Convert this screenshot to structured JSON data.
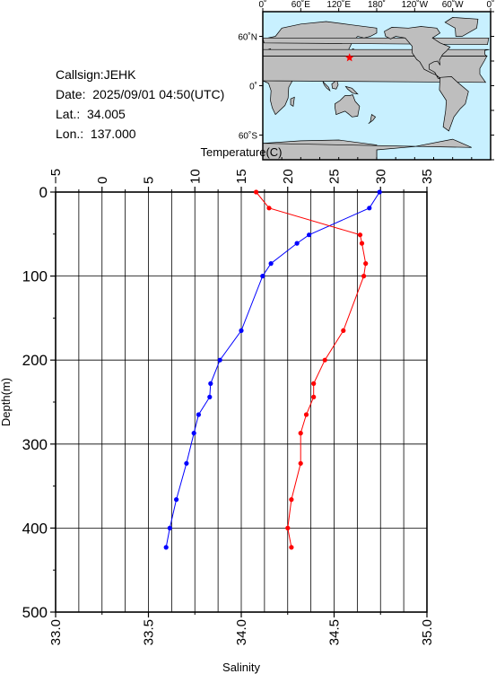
{
  "station": {
    "callsign": "Callsign:JEHK",
    "date": "Date:  2025/09/01 04:50(UTC)",
    "lat": "Lat.:  34.005",
    "lon": "Lon.:  137.000"
  },
  "map": {
    "top_ticks": [
      "0˚",
      "60˚E",
      "120˚E",
      "180˚",
      "120˚W",
      "60˚W",
      "0˚"
    ],
    "left_ticks": [
      "60˚N",
      "0˚",
      "60˚S"
    ],
    "colors": {
      "ocean": "#c8f0ff",
      "land": "#bebebe",
      "marker": "#ff0000"
    },
    "marker_lon": 137.0,
    "marker_lat": 34.005
  },
  "chart_data": {
    "type": "line",
    "title": "",
    "ylabel": "Depth(m)",
    "ylim": [
      0,
      500
    ],
    "y_ticks": [
      0,
      100,
      200,
      300,
      400,
      500
    ],
    "y_tick_labels": [
      "0",
      "100",
      "200",
      "300",
      "400",
      "500"
    ],
    "grid": true,
    "top_axis": {
      "label": "Temperature(C)",
      "range": [
        -5,
        35
      ],
      "ticks": [
        -5,
        0,
        5,
        10,
        15,
        20,
        25,
        30,
        35
      ],
      "tick_labels": [
        "−5",
        "0",
        "5",
        "10",
        "15",
        "20",
        "25",
        "30",
        "35"
      ]
    },
    "bottom_axis": {
      "label": "Salinity",
      "range": [
        33.0,
        35.0
      ],
      "ticks": [
        33.0,
        33.5,
        34.0,
        34.5,
        35.0
      ],
      "tick_labels": [
        "33.0",
        "33.5",
        "34.0",
        "34.5",
        "35.0"
      ]
    },
    "series": [
      {
        "axis": "top",
        "color": "#0000ff",
        "points": [
          [
            29.9,
            0
          ],
          [
            28.8,
            19
          ],
          [
            22.3,
            51
          ],
          [
            21.0,
            61
          ],
          [
            18.2,
            85
          ],
          [
            17.3,
            100
          ],
          [
            15.0,
            165
          ],
          [
            12.7,
            200
          ],
          [
            11.7,
            228
          ],
          [
            11.6,
            244
          ],
          [
            10.4,
            265
          ],
          [
            9.9,
            287
          ],
          [
            9.1,
            323
          ],
          [
            8.0,
            366
          ],
          [
            7.3,
            400
          ],
          [
            6.9,
            423
          ]
        ]
      },
      {
        "axis": "bottom",
        "color": "#ff0000",
        "points": [
          [
            34.08,
            0
          ],
          [
            34.15,
            19
          ],
          [
            34.64,
            51
          ],
          [
            34.65,
            61
          ],
          [
            34.67,
            85
          ],
          [
            34.66,
            100
          ],
          [
            34.55,
            165
          ],
          [
            34.45,
            200
          ],
          [
            34.39,
            228
          ],
          [
            34.39,
            244
          ],
          [
            34.35,
            265
          ],
          [
            34.32,
            287
          ],
          [
            34.32,
            323
          ],
          [
            34.27,
            366
          ],
          [
            34.25,
            400
          ],
          [
            34.27,
            423
          ]
        ]
      }
    ]
  }
}
